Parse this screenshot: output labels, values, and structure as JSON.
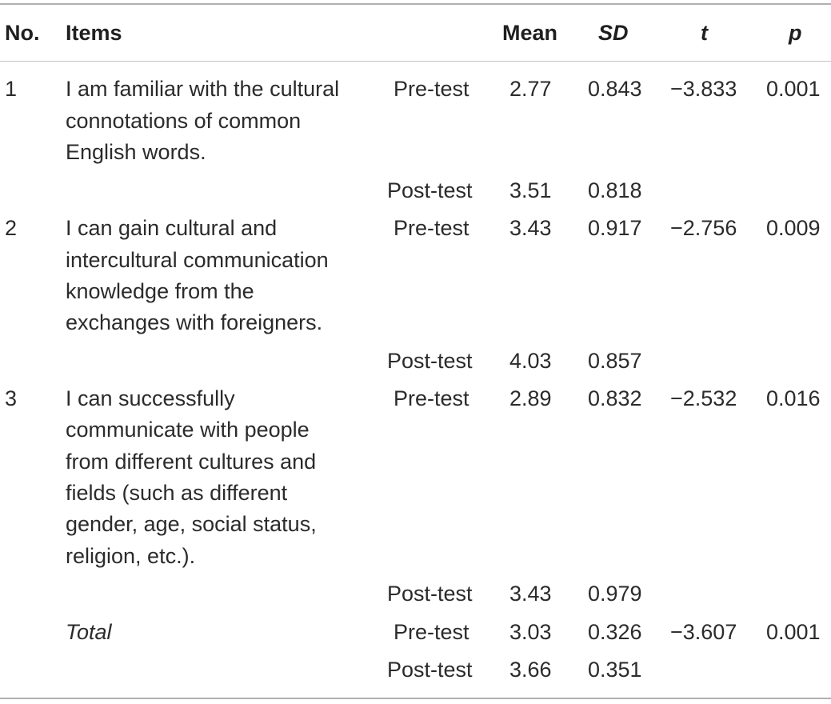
{
  "header": {
    "no": "No.",
    "items": "Items",
    "mean": "Mean",
    "sd": "SD",
    "t": "t",
    "p": "p"
  },
  "rows": [
    {
      "no": "1",
      "item_lines": [
        "I am familiar with the cultural",
        "connotations of common",
        "English words."
      ],
      "pre": {
        "label": "Pre-test",
        "mean": "2.77",
        "sd": "0.843",
        "t": "−3.833",
        "p": "0.001"
      },
      "post": {
        "label": "Post-test",
        "mean": "3.51",
        "sd": "0.818"
      }
    },
    {
      "no": "2",
      "item_lines": [
        "I can gain cultural and",
        "intercultural communication",
        "knowledge from the",
        "exchanges with foreigners."
      ],
      "pre": {
        "label": "Pre-test",
        "mean": "3.43",
        "sd": "0.917",
        "t": "−2.756",
        "p": "0.009"
      },
      "post": {
        "label": "Post-test",
        "mean": "4.03",
        "sd": "0.857"
      }
    },
    {
      "no": "3",
      "item_lines": [
        "I can successfully",
        "communicate with people",
        "from different cultures and",
        "fields (such as different",
        "gender, age, social status,",
        "religion, etc.)."
      ],
      "pre": {
        "label": "Pre-test",
        "mean": "2.89",
        "sd": "0.832",
        "t": "−2.532",
        "p": "0.016"
      },
      "post": {
        "label": "Post-test",
        "mean": "3.43",
        "sd": "0.979"
      }
    }
  ],
  "total": {
    "label": "Total",
    "pre": {
      "label": "Pre-test",
      "mean": "3.03",
      "sd": "0.326",
      "t": "−3.607",
      "p": "0.001"
    },
    "post": {
      "label": "Post-test",
      "mean": "3.66",
      "sd": "0.351"
    }
  }
}
